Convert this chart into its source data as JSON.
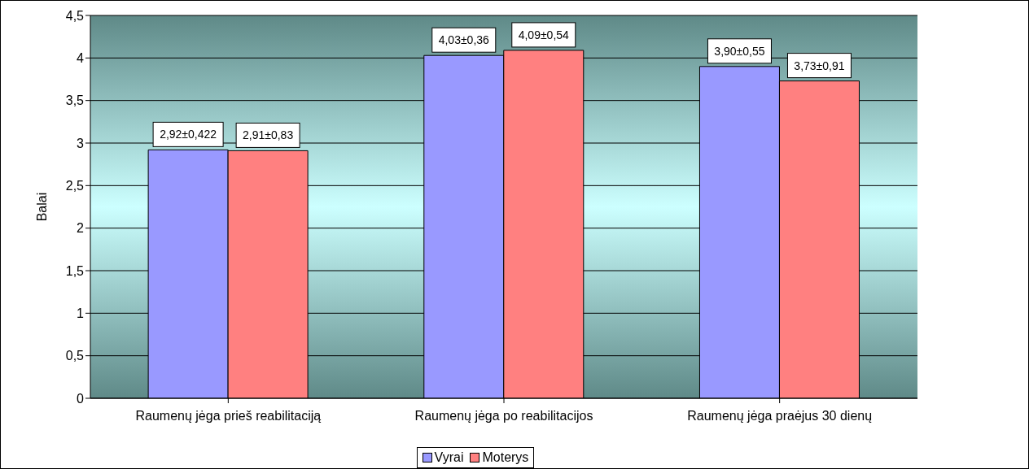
{
  "chart_data": {
    "type": "bar",
    "ylabel": "Balai",
    "categories": [
      "Raumenų jėga prieš reabilitaciją",
      "Raumenų jėga po reabilitacijos",
      "Raumenų jėga praėjus 30 dienų"
    ],
    "series": [
      {
        "name": "Vyrai",
        "color": "#9999ff",
        "values": [
          2.92,
          4.03,
          3.9
        ],
        "value_labels": [
          "2,92±0,422",
          "4,03±0,36",
          "3,90±0,55"
        ]
      },
      {
        "name": "Moterys",
        "color": "#ff8080",
        "values": [
          2.91,
          4.09,
          3.73
        ],
        "value_labels": [
          "2,91±0,83",
          "4,09±0,54",
          "3,73±0,91"
        ]
      }
    ],
    "ylim": [
      0,
      4.5
    ],
    "yticks": [
      {
        "value": 0,
        "label": "0"
      },
      {
        "value": 0.5,
        "label": "0,5"
      },
      {
        "value": 1,
        "label": "1"
      },
      {
        "value": 1.5,
        "label": "1,5"
      },
      {
        "value": 2,
        "label": "2"
      },
      {
        "value": 2.5,
        "label": "2,5"
      },
      {
        "value": 3,
        "label": "3"
      },
      {
        "value": 3.5,
        "label": "3,5"
      },
      {
        "value": 4,
        "label": "4"
      },
      {
        "value": 4.5,
        "label": "4,5"
      }
    ],
    "grid": "y",
    "legend": "bottom"
  }
}
